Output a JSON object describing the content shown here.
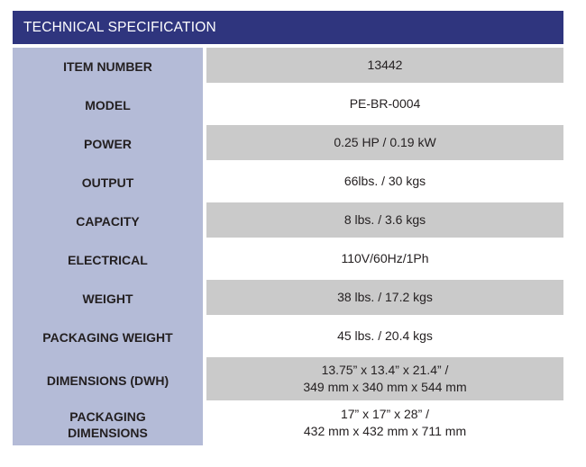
{
  "header": {
    "title": "TECHNICAL SPECIFICATION"
  },
  "colors": {
    "header_bg": "#2f357e",
    "header_text": "#ffffff",
    "label_bg": "#b4bbd7",
    "value_alt_bg": "#cacaca",
    "value_bg": "#ffffff",
    "text": "#231f20"
  },
  "table": {
    "rows": [
      {
        "label": "ITEM NUMBER",
        "value": "13442"
      },
      {
        "label": "MODEL",
        "value": "PE-BR-0004"
      },
      {
        "label": "POWER",
        "value": "0.25 HP / 0.19 kW"
      },
      {
        "label": "OUTPUT",
        "value": "66lbs. / 30 kgs"
      },
      {
        "label": "CAPACITY",
        "value": "8 lbs. / 3.6 kgs"
      },
      {
        "label": "ELECTRICAL",
        "value": "110V/60Hz/1Ph"
      },
      {
        "label": "WEIGHT",
        "value": "38 lbs. / 17.2 kgs"
      },
      {
        "label": "PACKAGING WEIGHT",
        "value": "45 lbs. / 20.4 kgs"
      },
      {
        "label": "DIMENSIONS (DWH)",
        "value": "13.75” x 13.4” x 21.4” /\n349 mm x 340 mm x 544 mm"
      },
      {
        "label": "PACKAGING\nDIMENSIONS",
        "value": "17” x 17” x 28” /\n432 mm x 432 mm x 711 mm"
      }
    ]
  }
}
